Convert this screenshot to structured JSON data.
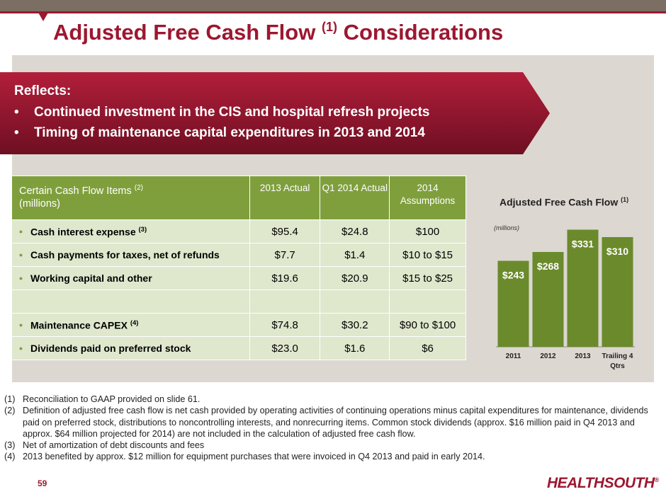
{
  "title": {
    "main": "Adjusted Free Cash Flow",
    "sup": "(1)",
    "suffix": "Considerations"
  },
  "banner": {
    "heading": "Reflects:",
    "items": [
      "Continued investment in the CIS and hospital refresh projects",
      "Timing of maintenance capital expenditures in 2013 and 2014"
    ]
  },
  "table": {
    "header": {
      "label": "Certain Cash Flow Items",
      "sup": "(2)",
      "units": "(millions)",
      "col1": "2013 Actual",
      "col2": "Q1 2014 Actual",
      "col3": "2014 Assumptions"
    },
    "rows": [
      {
        "label": "Cash interest expense",
        "sup": "(3)",
        "v2013": "$95.4",
        "vq1": "$24.8",
        "v2014": "$100"
      },
      {
        "label": "Cash payments for taxes, net of refunds",
        "sup": "",
        "v2013": "$7.7",
        "vq1": "$1.4",
        "v2014": "$10 to $15"
      },
      {
        "label": "Working capital and other",
        "sup": "",
        "v2013": "$19.6",
        "vq1": "$20.9",
        "v2014": "$15 to $25"
      },
      {
        "label": "",
        "sup": "",
        "v2013": "",
        "vq1": "",
        "v2014": ""
      },
      {
        "label": "Maintenance CAPEX",
        "sup": "(4)",
        "v2013": "$74.8",
        "vq1": "$30.2",
        "v2014": "$90 to $100"
      },
      {
        "label": "Dividends paid on preferred stock",
        "sup": "",
        "v2013": "$23.0",
        "vq1": "$1.6",
        "v2014": "$6"
      }
    ]
  },
  "chart_data": {
    "type": "bar",
    "title": "Adjusted Free Cash Flow",
    "title_sup": "(1)",
    "units": "(millions)",
    "categories": [
      "2011",
      "2012",
      "2013",
      "Trailing 4 Qtrs"
    ],
    "values": [
      243,
      268,
      331,
      310
    ],
    "labels": [
      "$243",
      "$268",
      "$331",
      "$310"
    ],
    "ylim": [
      0,
      340
    ],
    "bar_color": "#6b8a2c"
  },
  "footnotes": [
    {
      "n": "(1)",
      "text": "Reconciliation to GAAP provided on slide 61."
    },
    {
      "n": "(2)",
      "text": "Definition of adjusted free cash flow is net cash provided by operating activities of continuing operations minus capital expenditures for maintenance, dividends paid on preferred stock, distributions to noncontrolling  interests, and nonrecurring items. Common stock dividends (approx. $16 million paid in Q4 2013 and approx. $64 million projected for 2014) are not included in the calculation of adjusted free cash flow."
    },
    {
      "n": "(3)",
      "text": "Net of amortization of debt discounts and fees"
    },
    {
      "n": "(4)",
      "text": "2013 benefited by approx. $12 million for equipment purchases that were invoiced in Q4 2013 and paid in early 2014."
    }
  ],
  "page_number": "59",
  "logo": {
    "text": "HEALTHSOUTH",
    "mark": "®"
  },
  "colors": {
    "brand": "#9c1730",
    "green": "#7f9f3d",
    "light_green": "#dfe7cd",
    "panel": "#dcd7d1"
  }
}
